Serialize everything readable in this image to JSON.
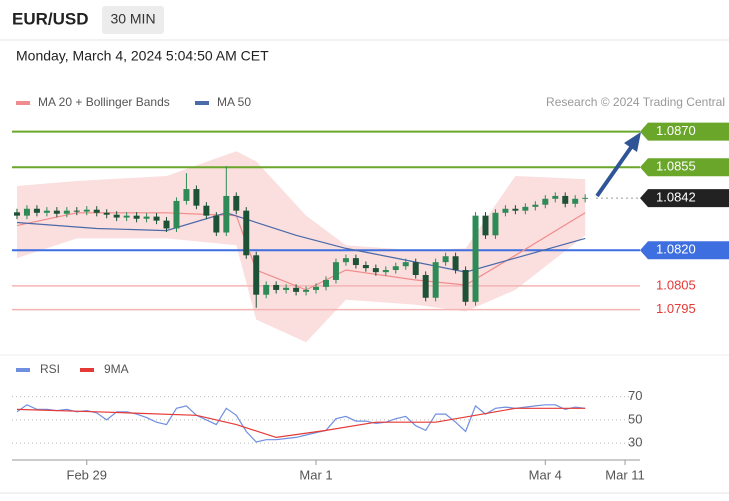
{
  "header": {
    "symbol": "EUR/USD",
    "timeframe": "30 MIN",
    "timestamp": "Monday, March 4, 2024 5:04:50 AM CET"
  },
  "chart_data": [
    {
      "type": "candlestick",
      "credit": "Research © 2024 Trading Central",
      "up_color": "#2e8b57",
      "down_color": "#1d5236",
      "xlim": [
        -0.5,
        62.5
      ],
      "ylim": [
        1.0778,
        1.0877
      ],
      "xticks": [
        {
          "value": 7,
          "label": "Feb 29"
        },
        {
          "value": 30,
          "label": "Mar 1"
        },
        {
          "value": 53,
          "label": "Mar 4"
        },
        {
          "value": 61,
          "label": "Mar 11"
        }
      ],
      "x": [
        0,
        1,
        2,
        3,
        4,
        5,
        6,
        7,
        8,
        9,
        10,
        11,
        12,
        13,
        14,
        15,
        16,
        17,
        18,
        19,
        20,
        21,
        22,
        23,
        24,
        25,
        26,
        27,
        28,
        29,
        30,
        31,
        32,
        33,
        34,
        35,
        36,
        37,
        38,
        39,
        40,
        41,
        42,
        43,
        44,
        45,
        46,
        47,
        48,
        49,
        50,
        51,
        52,
        53,
        54,
        55,
        56,
        57
      ],
      "open": [
        1.0836,
        1.08346,
        1.08375,
        1.08358,
        1.08367,
        1.08354,
        1.08367,
        1.08363,
        1.08371,
        1.08358,
        1.0835,
        1.08338,
        1.08346,
        1.08333,
        1.08342,
        1.08325,
        1.08292,
        1.08408,
        1.08458,
        1.08388,
        1.08346,
        1.08275,
        1.08429,
        1.08367,
        1.08179,
        1.08013,
        1.08054,
        1.08033,
        1.08042,
        1.08025,
        1.08033,
        1.08046,
        1.08075,
        1.0815,
        1.08167,
        1.08138,
        1.08125,
        1.08108,
        1.08117,
        1.08133,
        1.0815,
        1.08096,
        1.08,
        1.0815,
        1.08175,
        1.08117,
        1.07983,
        1.08346,
        1.08263,
        1.08358,
        1.08375,
        1.08367,
        1.08383,
        1.08392,
        1.08417,
        1.08429,
        1.08396,
        1.08417
      ],
      "high": [
        1.08375,
        1.0839,
        1.0839,
        1.08382,
        1.08382,
        1.08382,
        1.08382,
        1.08386,
        1.08386,
        1.08373,
        1.08365,
        1.08361,
        1.08361,
        1.08357,
        1.08357,
        1.0834,
        1.08423,
        1.08525,
        1.08473,
        1.08403,
        1.08361,
        1.08554,
        1.08444,
        1.08382,
        1.08194,
        1.08069,
        1.08069,
        1.08057,
        1.08057,
        1.08048,
        1.08061,
        1.0809,
        1.08165,
        1.08182,
        1.08182,
        1.08153,
        1.0814,
        1.08132,
        1.08148,
        1.08165,
        1.08165,
        1.08111,
        1.08165,
        1.0819,
        1.0819,
        1.08132,
        1.08361,
        1.08361,
        1.08373,
        1.0839,
        1.0839,
        1.08398,
        1.08407,
        1.08432,
        1.08444,
        1.08444,
        1.08432,
        1.08436
      ],
      "low": [
        1.08331,
        1.08331,
        1.08343,
        1.08343,
        1.08339,
        1.08339,
        1.08348,
        1.08348,
        1.08343,
        1.08335,
        1.08323,
        1.08323,
        1.08318,
        1.08318,
        1.0831,
        1.08277,
        1.08277,
        1.08393,
        1.08373,
        1.08331,
        1.0826,
        1.0826,
        1.08352,
        1.08164,
        1.07958,
        1.07998,
        1.08018,
        1.08018,
        1.0801,
        1.0801,
        1.08018,
        1.08031,
        1.0806,
        1.08135,
        1.08123,
        1.0811,
        1.08093,
        1.08093,
        1.08102,
        1.08118,
        1.08081,
        1.07985,
        1.07985,
        1.08135,
        1.08102,
        1.07967,
        1.07967,
        1.08248,
        1.08248,
        1.08343,
        1.08352,
        1.08352,
        1.08368,
        1.08377,
        1.08402,
        1.08381,
        1.08381,
        1.08402
      ],
      "close": [
        1.08346,
        1.08375,
        1.08358,
        1.08367,
        1.08354,
        1.08367,
        1.08363,
        1.08371,
        1.08358,
        1.0835,
        1.08338,
        1.08346,
        1.08333,
        1.08342,
        1.08325,
        1.08292,
        1.08408,
        1.08458,
        1.08388,
        1.08346,
        1.08275,
        1.08429,
        1.08367,
        1.08179,
        1.08013,
        1.08054,
        1.08033,
        1.08042,
        1.08025,
        1.08033,
        1.08046,
        1.08075,
        1.0815,
        1.08167,
        1.08138,
        1.08125,
        1.08108,
        1.08117,
        1.08133,
        1.0815,
        1.08096,
        1.08,
        1.0815,
        1.08175,
        1.08117,
        1.07983,
        1.08346,
        1.08263,
        1.08358,
        1.08375,
        1.08367,
        1.08383,
        1.08392,
        1.08417,
        1.08429,
        1.08396,
        1.08417,
        1.08421
      ],
      "series": [
        {
          "name": "MA 20 + Bollinger Bands",
          "color": "#f28b8b",
          "band_color": "#fbdede",
          "x": [
            0,
            6,
            15,
            22,
            24,
            29,
            33,
            40,
            45,
            50,
            57
          ],
          "values": [
            1.08304,
            1.08358,
            1.08358,
            1.08346,
            1.08117,
            1.08033,
            1.08117,
            1.08075,
            1.08054,
            1.08179,
            1.08358
          ],
          "upper": [
            1.08471,
            1.08492,
            1.08513,
            1.08617,
            1.08575,
            1.08346,
            1.08221,
            1.082,
            1.08208,
            1.08513,
            1.085
          ],
          "lower": [
            1.08167,
            1.0825,
            1.0825,
            1.08221,
            1.07908,
            1.07813,
            1.07992,
            1.07971,
            1.07942,
            1.08033,
            1.08263
          ]
        },
        {
          "name": "MA 50",
          "color": "#4a6aa8",
          "x": [
            0,
            8,
            15,
            21,
            28,
            33,
            38,
            45,
            50,
            57
          ],
          "values": [
            1.08317,
            1.08292,
            1.08283,
            1.08358,
            1.08263,
            1.08208,
            1.08167,
            1.08108,
            1.08167,
            1.0825
          ]
        }
      ],
      "levels": [
        {
          "value": 1.087,
          "label": "1.0870",
          "color": "#6aa629",
          "style": "box",
          "line": "solid"
        },
        {
          "value": 1.0855,
          "label": "1.0855",
          "color": "#6aa629",
          "style": "box",
          "line": "solid"
        },
        {
          "value": 1.0842,
          "label": "1.0842",
          "color": "#222222",
          "style": "box",
          "line": "dotted"
        },
        {
          "value": 1.082,
          "label": "1.0820",
          "color": "#3d6fe0",
          "style": "box",
          "line": "solid"
        },
        {
          "value": 1.0805,
          "label": "1.0805",
          "color": "#e53935",
          "style": "text",
          "line": "solid"
        },
        {
          "value": 1.0795,
          "label": "1.0795",
          "color": "#e53935",
          "style": "text",
          "line": "solid"
        }
      ]
    },
    {
      "type": "line",
      "xlim": [
        -0.5,
        62.5
      ],
      "ylim": [
        25,
        80
      ],
      "yticks": [
        30,
        50,
        70
      ],
      "grid": true,
      "series": [
        {
          "name": "RSI",
          "color": "#6f8fe0",
          "x": [
            0,
            1,
            2,
            3,
            4,
            5,
            6,
            7,
            8,
            9,
            10,
            11,
            12,
            13,
            14,
            15,
            16,
            17,
            18,
            19,
            20,
            21,
            22,
            23,
            24,
            25,
            26,
            27,
            28,
            29,
            30,
            31,
            32,
            33,
            34,
            35,
            36,
            37,
            38,
            39,
            40,
            41,
            42,
            43,
            44,
            45,
            46,
            47,
            48,
            49,
            50,
            51,
            52,
            53,
            54,
            55,
            56,
            57
          ],
          "values": [
            57,
            63,
            59,
            59,
            58,
            59,
            57,
            58,
            56,
            50,
            57,
            57,
            55,
            52,
            48,
            46,
            60,
            62,
            54,
            50,
            46,
            60,
            54,
            40,
            31,
            33,
            33,
            34,
            35,
            37,
            39,
            41,
            51,
            53,
            49,
            49,
            47,
            48,
            51,
            53,
            45,
            41,
            55,
            55,
            48,
            40,
            62,
            55,
            60,
            61,
            60,
            61,
            62,
            63,
            63,
            59,
            61,
            60
          ]
        },
        {
          "name": "9MA",
          "color": "#e53935",
          "x": [
            0,
            8,
            18,
            22,
            26,
            31,
            36,
            42,
            46,
            50,
            57
          ],
          "values": [
            59,
            57,
            54,
            46,
            35,
            41,
            48,
            48,
            54,
            60,
            60
          ]
        }
      ]
    }
  ]
}
